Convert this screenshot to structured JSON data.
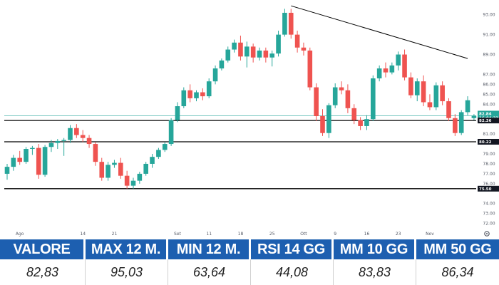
{
  "chart_data": {
    "type": "candlestick",
    "colors": {
      "up": "#26a69a",
      "down": "#ef5350",
      "line": "#000000",
      "tag_bg": "#131722",
      "price_tag_bg": "#26a69a"
    },
    "ylim": [
      71.4,
      94.2
    ],
    "y_ticks": [
      {
        "value": 93.0,
        "label": "93.00"
      },
      {
        "value": 91.0,
        "label": "91.00"
      },
      {
        "value": 89.0,
        "label": "89.00"
      },
      {
        "value": 87.0,
        "label": "87.00"
      },
      {
        "value": 86.0,
        "label": "86.00"
      },
      {
        "value": 85.0,
        "label": "85.00"
      },
      {
        "value": 84.0,
        "label": "84.00"
      },
      {
        "value": 81.0,
        "label": "81.00"
      },
      {
        "value": 79.0,
        "label": "79.00"
      },
      {
        "value": 78.0,
        "label": "78.00"
      },
      {
        "value": 77.0,
        "label": "77.00"
      },
      {
        "value": 76.0,
        "label": "76.00"
      },
      {
        "value": 74.0,
        "label": "74.00"
      },
      {
        "value": 73.0,
        "label": "73.00"
      },
      {
        "value": 72.0,
        "label": "72.00"
      }
    ],
    "x_labels": [
      {
        "label": "Ago",
        "index": 2
      },
      {
        "label": "14",
        "index": 12
      },
      {
        "label": "21",
        "index": 17
      },
      {
        "label": "Set",
        "index": 27
      },
      {
        "label": "11",
        "index": 32
      },
      {
        "label": "18",
        "index": 37
      },
      {
        "label": "25",
        "index": 42
      },
      {
        "label": "Ott",
        "index": 47
      },
      {
        "label": "9",
        "index": 52
      },
      {
        "label": "16",
        "index": 57
      },
      {
        "label": "23",
        "index": 62
      },
      {
        "label": "Nov",
        "index": 67
      }
    ],
    "price_tags": [
      {
        "value": 82.84,
        "label": "82.84",
        "sublabel": "16:04:33",
        "style": "price"
      },
      {
        "value": 82.36,
        "label": "82.36",
        "style": "level"
      },
      {
        "value": 80.22,
        "label": "80.22",
        "style": "level"
      },
      {
        "value": 75.5,
        "label": "75.50",
        "style": "level"
      }
    ],
    "horizontal_lines": [
      82.36,
      80.22,
      75.5
    ],
    "last_price_line": 82.84,
    "trendline": {
      "from": {
        "index": 45,
        "value": 93.9
      },
      "to": {
        "index": 73,
        "value": 88.6
      }
    },
    "candles": [
      [
        77.0,
        78.0,
        76.4,
        77.7
      ],
      [
        77.7,
        78.9,
        77.3,
        78.6
      ],
      [
        78.6,
        79.3,
        77.9,
        78.2
      ],
      [
        78.2,
        79.7,
        78.0,
        79.5
      ],
      [
        79.5,
        79.8,
        78.9,
        79.6
      ],
      [
        79.6,
        80.0,
        76.5,
        76.9
      ],
      [
        76.9,
        79.9,
        76.7,
        79.7
      ],
      [
        79.7,
        80.4,
        79.2,
        80.1
      ],
      [
        80.1,
        80.5,
        79.5,
        80.3
      ],
      [
        80.3,
        80.6,
        78.8,
        80.4
      ],
      [
        80.4,
        81.9,
        80.1,
        81.6
      ],
      [
        81.6,
        82.0,
        80.6,
        80.9
      ],
      [
        80.9,
        81.4,
        80.2,
        80.6
      ],
      [
        80.6,
        80.9,
        79.6,
        80.0
      ],
      [
        80.0,
        80.2,
        77.8,
        78.2
      ],
      [
        78.2,
        78.6,
        76.3,
        76.6
      ],
      [
        76.6,
        78.2,
        76.3,
        77.9
      ],
      [
        77.9,
        78.4,
        77.6,
        78.1
      ],
      [
        78.1,
        78.6,
        76.5,
        76.8
      ],
      [
        76.8,
        77.3,
        75.5,
        75.8
      ],
      [
        75.8,
        76.6,
        75.5,
        76.3
      ],
      [
        76.3,
        77.2,
        76.0,
        77.0
      ],
      [
        77.0,
        78.2,
        76.8,
        78.0
      ],
      [
        78.0,
        79.0,
        77.6,
        78.7
      ],
      [
        78.7,
        79.6,
        78.5,
        79.4
      ],
      [
        79.4,
        80.2,
        79.2,
        80.0
      ],
      [
        80.0,
        82.6,
        79.8,
        82.4
      ],
      [
        82.4,
        84.2,
        82.2,
        83.8
      ],
      [
        83.8,
        85.7,
        83.6,
        85.4
      ],
      [
        85.4,
        86.0,
        84.2,
        84.6
      ],
      [
        84.6,
        85.4,
        84.3,
        85.2
      ],
      [
        85.2,
        85.6,
        84.4,
        84.8
      ],
      [
        84.8,
        86.6,
        84.6,
        86.3
      ],
      [
        86.3,
        87.9,
        86.0,
        87.6
      ],
      [
        87.6,
        88.6,
        87.4,
        88.4
      ],
      [
        88.4,
        89.8,
        88.2,
        89.5
      ],
      [
        89.5,
        90.5,
        89.2,
        90.2
      ],
      [
        90.2,
        90.9,
        88.4,
        88.8
      ],
      [
        88.8,
        90.3,
        87.7,
        89.8
      ],
      [
        89.8,
        90.1,
        88.2,
        88.7
      ],
      [
        88.7,
        89.7,
        88.4,
        89.4
      ],
      [
        89.4,
        89.7,
        88.2,
        88.7
      ],
      [
        88.7,
        89.4,
        87.8,
        89.1
      ],
      [
        89.1,
        91.4,
        88.8,
        91.0
      ],
      [
        91.0,
        93.6,
        90.8,
        93.2
      ],
      [
        93.2,
        93.6,
        90.6,
        91.0
      ],
      [
        91.0,
        91.4,
        89.2,
        89.7
      ],
      [
        89.7,
        90.2,
        88.9,
        89.4
      ],
      [
        89.4,
        89.7,
        85.4,
        85.7
      ],
      [
        85.7,
        86.1,
        82.3,
        82.8
      ],
      [
        82.8,
        83.5,
        80.8,
        81.1
      ],
      [
        81.1,
        84.1,
        80.6,
        83.9
      ],
      [
        83.9,
        86.1,
        83.6,
        85.7
      ],
      [
        85.7,
        86.3,
        85.0,
        85.4
      ],
      [
        85.4,
        86.0,
        83.1,
        83.6
      ],
      [
        83.6,
        84.0,
        82.0,
        82.4
      ],
      [
        82.4,
        82.7,
        81.4,
        81.8
      ],
      [
        81.8,
        82.9,
        81.4,
        82.5
      ],
      [
        82.5,
        86.9,
        82.3,
        86.6
      ],
      [
        86.6,
        87.9,
        86.3,
        87.6
      ],
      [
        87.6,
        88.2,
        86.7,
        87.2
      ],
      [
        87.2,
        88.2,
        87.0,
        87.9
      ],
      [
        87.9,
        89.3,
        87.4,
        89.0
      ],
      [
        89.0,
        89.5,
        86.4,
        86.7
      ],
      [
        86.7,
        87.2,
        84.6,
        84.9
      ],
      [
        84.9,
        86.6,
        84.3,
        86.3
      ],
      [
        86.3,
        86.9,
        83.8,
        84.2
      ],
      [
        84.2,
        85.0,
        83.4,
        83.7
      ],
      [
        83.7,
        86.2,
        83.4,
        85.9
      ],
      [
        85.9,
        86.3,
        83.9,
        84.3
      ],
      [
        84.3,
        84.6,
        82.3,
        82.6
      ],
      [
        82.6,
        83.0,
        80.8,
        81.1
      ],
      [
        81.1,
        83.4,
        80.9,
        83.2
      ],
      [
        83.2,
        84.8,
        82.9,
        84.4
      ],
      [
        82.6,
        83.0,
        82.4,
        82.83
      ]
    ]
  },
  "stats": {
    "headers": [
      "VALORE",
      "MAX 12 M.",
      "MIN 12 M.",
      "RSI 14 GG",
      "MM 10 GG",
      "MM 50 GG"
    ],
    "values": [
      "82,83",
      "95,03",
      "63,64",
      "44,08",
      "83,83",
      "86,34"
    ]
  },
  "icons": {
    "settings": "gear-icon"
  }
}
